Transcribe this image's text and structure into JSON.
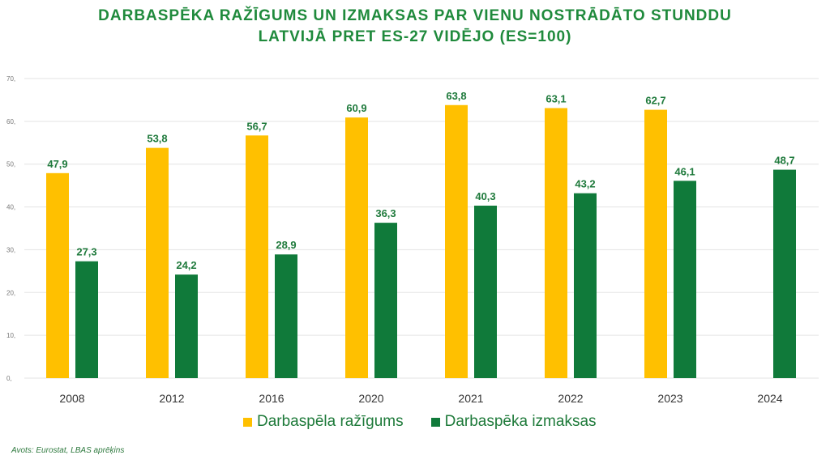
{
  "chart_data": {
    "type": "bar",
    "title": [
      "DARBASPĒKA RAŽĪGUMS UN IZMAKSAS PAR VIENU NOSTRĀDĀTO STUNDDU",
      "LATVIJĀ PRET ES-27 VIDĒJO (ES=100)"
    ],
    "categories": [
      "2008",
      "2012",
      "2016",
      "2020",
      "2021",
      "2022",
      "2023",
      "2024"
    ],
    "series": [
      {
        "name": "Darbaspēla ražīgums",
        "color": "#ffc000",
        "values": [
          47.9,
          53.8,
          56.7,
          60.9,
          63.8,
          63.1,
          62.7,
          null
        ],
        "labels": [
          "47,9",
          "53,8",
          "56,7",
          "60,9",
          "63,8",
          "63,1",
          "62,7",
          ""
        ]
      },
      {
        "name": "Darbaspēka izmaksas",
        "color": "#107a3a",
        "values": [
          27.3,
          24.2,
          28.9,
          36.3,
          40.3,
          43.2,
          46.1,
          48.7
        ],
        "labels": [
          "27,3",
          "24,2",
          "28,9",
          "36,3",
          "40,3",
          "43,2",
          "46,1",
          "48,7"
        ]
      }
    ],
    "ylim": [
      0,
      70
    ],
    "yticks": [
      0,
      10,
      20,
      30,
      40,
      50,
      60,
      70
    ],
    "ytick_labels": [
      "0,",
      "10,",
      "20,",
      "30,",
      "40,",
      "50,",
      "60,",
      "70,"
    ],
    "grid": true,
    "legend_position": "bottom",
    "xlabel": "",
    "ylabel": ""
  },
  "source": "Avots: Eurostat, LBAS aprēķins"
}
